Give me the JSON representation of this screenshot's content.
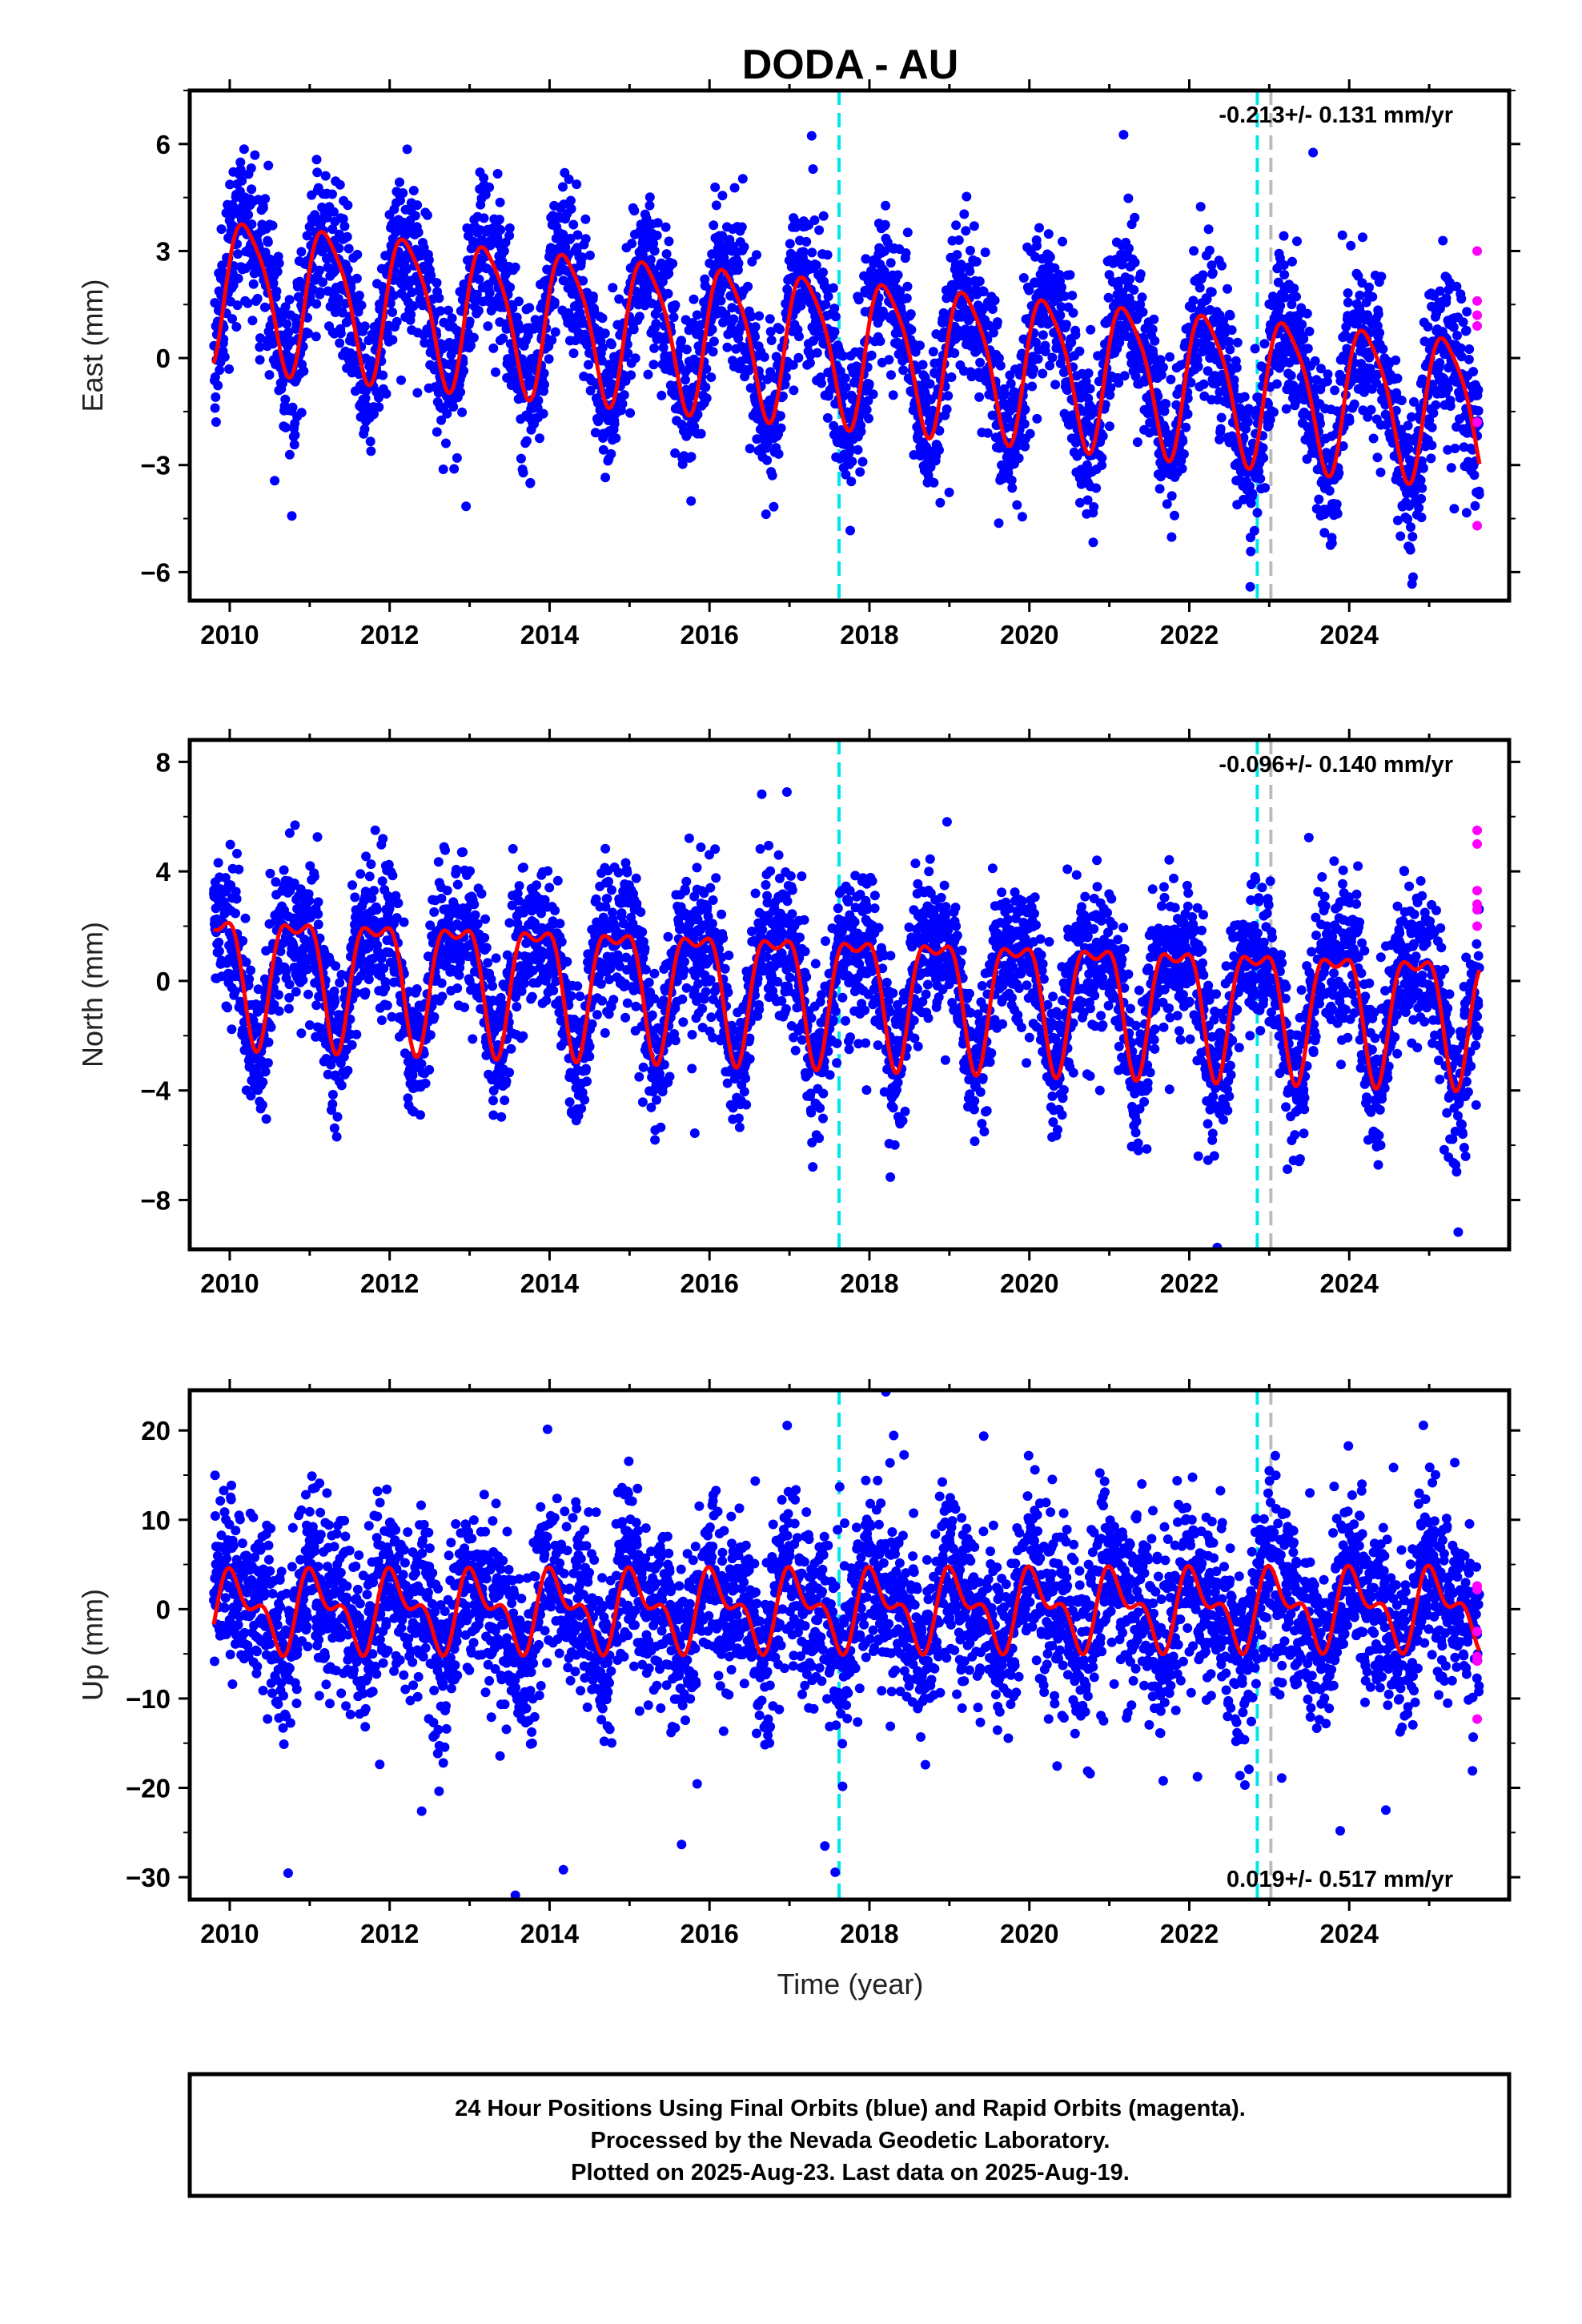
{
  "title": "DODA - AU",
  "xlabel": "Time (year)",
  "footer": {
    "line1": "24 Hour Positions Using Final Orbits (blue) and Rapid Orbits (magenta).",
    "line2": "Processed by the Nevada Geodetic Laboratory.",
    "line3": "Plotted on 2025-Aug-23. Last data on 2025-Aug-19."
  },
  "colors": {
    "final_orbits": "#0000ff",
    "rapid_orbits": "#ff00ff",
    "model_fit": "#ff0000",
    "event_line": "#00e5ee",
    "equipment_line": "#bbbbbb"
  },
  "chart_data": [
    {
      "type": "scatter",
      "name": "east",
      "ylabel": "East (mm)",
      "rate_text": "-0.213+/- 0.131 mm/yr",
      "rate_position": "top-right",
      "xlim": [
        2009.5,
        2026.0
      ],
      "ylim": [
        -6.8,
        7.5
      ],
      "yticks": [
        6,
        3,
        0,
        -3,
        -6
      ],
      "xticks": [
        "2010",
        "2012",
        "2014",
        "2016",
        "2018",
        "2020",
        "2022",
        "2024"
      ],
      "event_lines": [
        2017.62,
        2022.85
      ],
      "equipment_lines": [
        2023.02
      ],
      "data_span": [
        2009.8,
        2025.63
      ],
      "model": {
        "offset": 0.3,
        "trend": -0.213,
        "annual_amp": 2.0,
        "annual_phase": 0.2,
        "semi_amp": 0.4,
        "semi_phase": 1.2,
        "noise": 1.05
      },
      "rapid_points": {
        "x": [
          2025.6,
          2025.6,
          2025.6,
          2025.6,
          2025.6,
          2025.6
        ],
        "y": [
          3.0,
          1.6,
          1.2,
          0.9,
          -1.8,
          -4.7
        ]
      }
    },
    {
      "type": "scatter",
      "name": "north",
      "ylabel": "North (mm)",
      "rate_text": "-0.096+/- 0.140 mm/yr",
      "rate_position": "top-right",
      "xlim": [
        2009.5,
        2026.0
      ],
      "ylim": [
        -9.8,
        8.8
      ],
      "yticks": [
        8,
        4,
        0,
        -4,
        -8
      ],
      "xticks": [
        "2010",
        "2012",
        "2014",
        "2016",
        "2018",
        "2020",
        "2022",
        "2024"
      ],
      "event_lines": [
        2017.62,
        2022.85
      ],
      "equipment_lines": [
        2023.02
      ],
      "data_span": [
        2009.8,
        2025.63
      ],
      "model": {
        "offset": -0.2,
        "trend": -0.096,
        "annual_amp": 2.2,
        "annual_phase": 2.6,
        "semi_amp": 0.9,
        "semi_phase": 0.5,
        "noise": 1.3
      },
      "rapid_points": {
        "x": [
          2025.6,
          2025.6,
          2025.6,
          2025.6,
          2025.6,
          2025.6
        ],
        "y": [
          5.5,
          5.0,
          3.3,
          2.8,
          2.6,
          2.0
        ]
      }
    },
    {
      "type": "scatter",
      "name": "up",
      "ylabel": "Up (mm)",
      "rate_text": "0.019+/- 0.517 mm/yr",
      "rate_position": "bottom-right",
      "xlim": [
        2009.5,
        2026.0
      ],
      "ylim": [
        -32.5,
        24.5
      ],
      "yticks": [
        20,
        10,
        0,
        -10,
        -20,
        -30
      ],
      "xticks": [
        "2010",
        "2012",
        "2014",
        "2016",
        "2018",
        "2020",
        "2022",
        "2024"
      ],
      "event_lines": [
        2017.62,
        2022.85
      ],
      "equipment_lines": [
        2023.02
      ],
      "data_span": [
        2009.8,
        2025.63
      ],
      "model": {
        "offset": 0.0,
        "trend": 0.019,
        "annual_amp": 3.5,
        "annual_phase": 1.0,
        "semi_amp": 2.2,
        "semi_phase": 2.2,
        "noise": 4.8
      },
      "rapid_points": {
        "x": [
          2025.6,
          2025.6,
          2025.6,
          2025.6,
          2025.6,
          2025.6
        ],
        "y": [
          2.6,
          2.2,
          -2.5,
          -5.3,
          -5.8,
          -12.3
        ]
      }
    }
  ]
}
